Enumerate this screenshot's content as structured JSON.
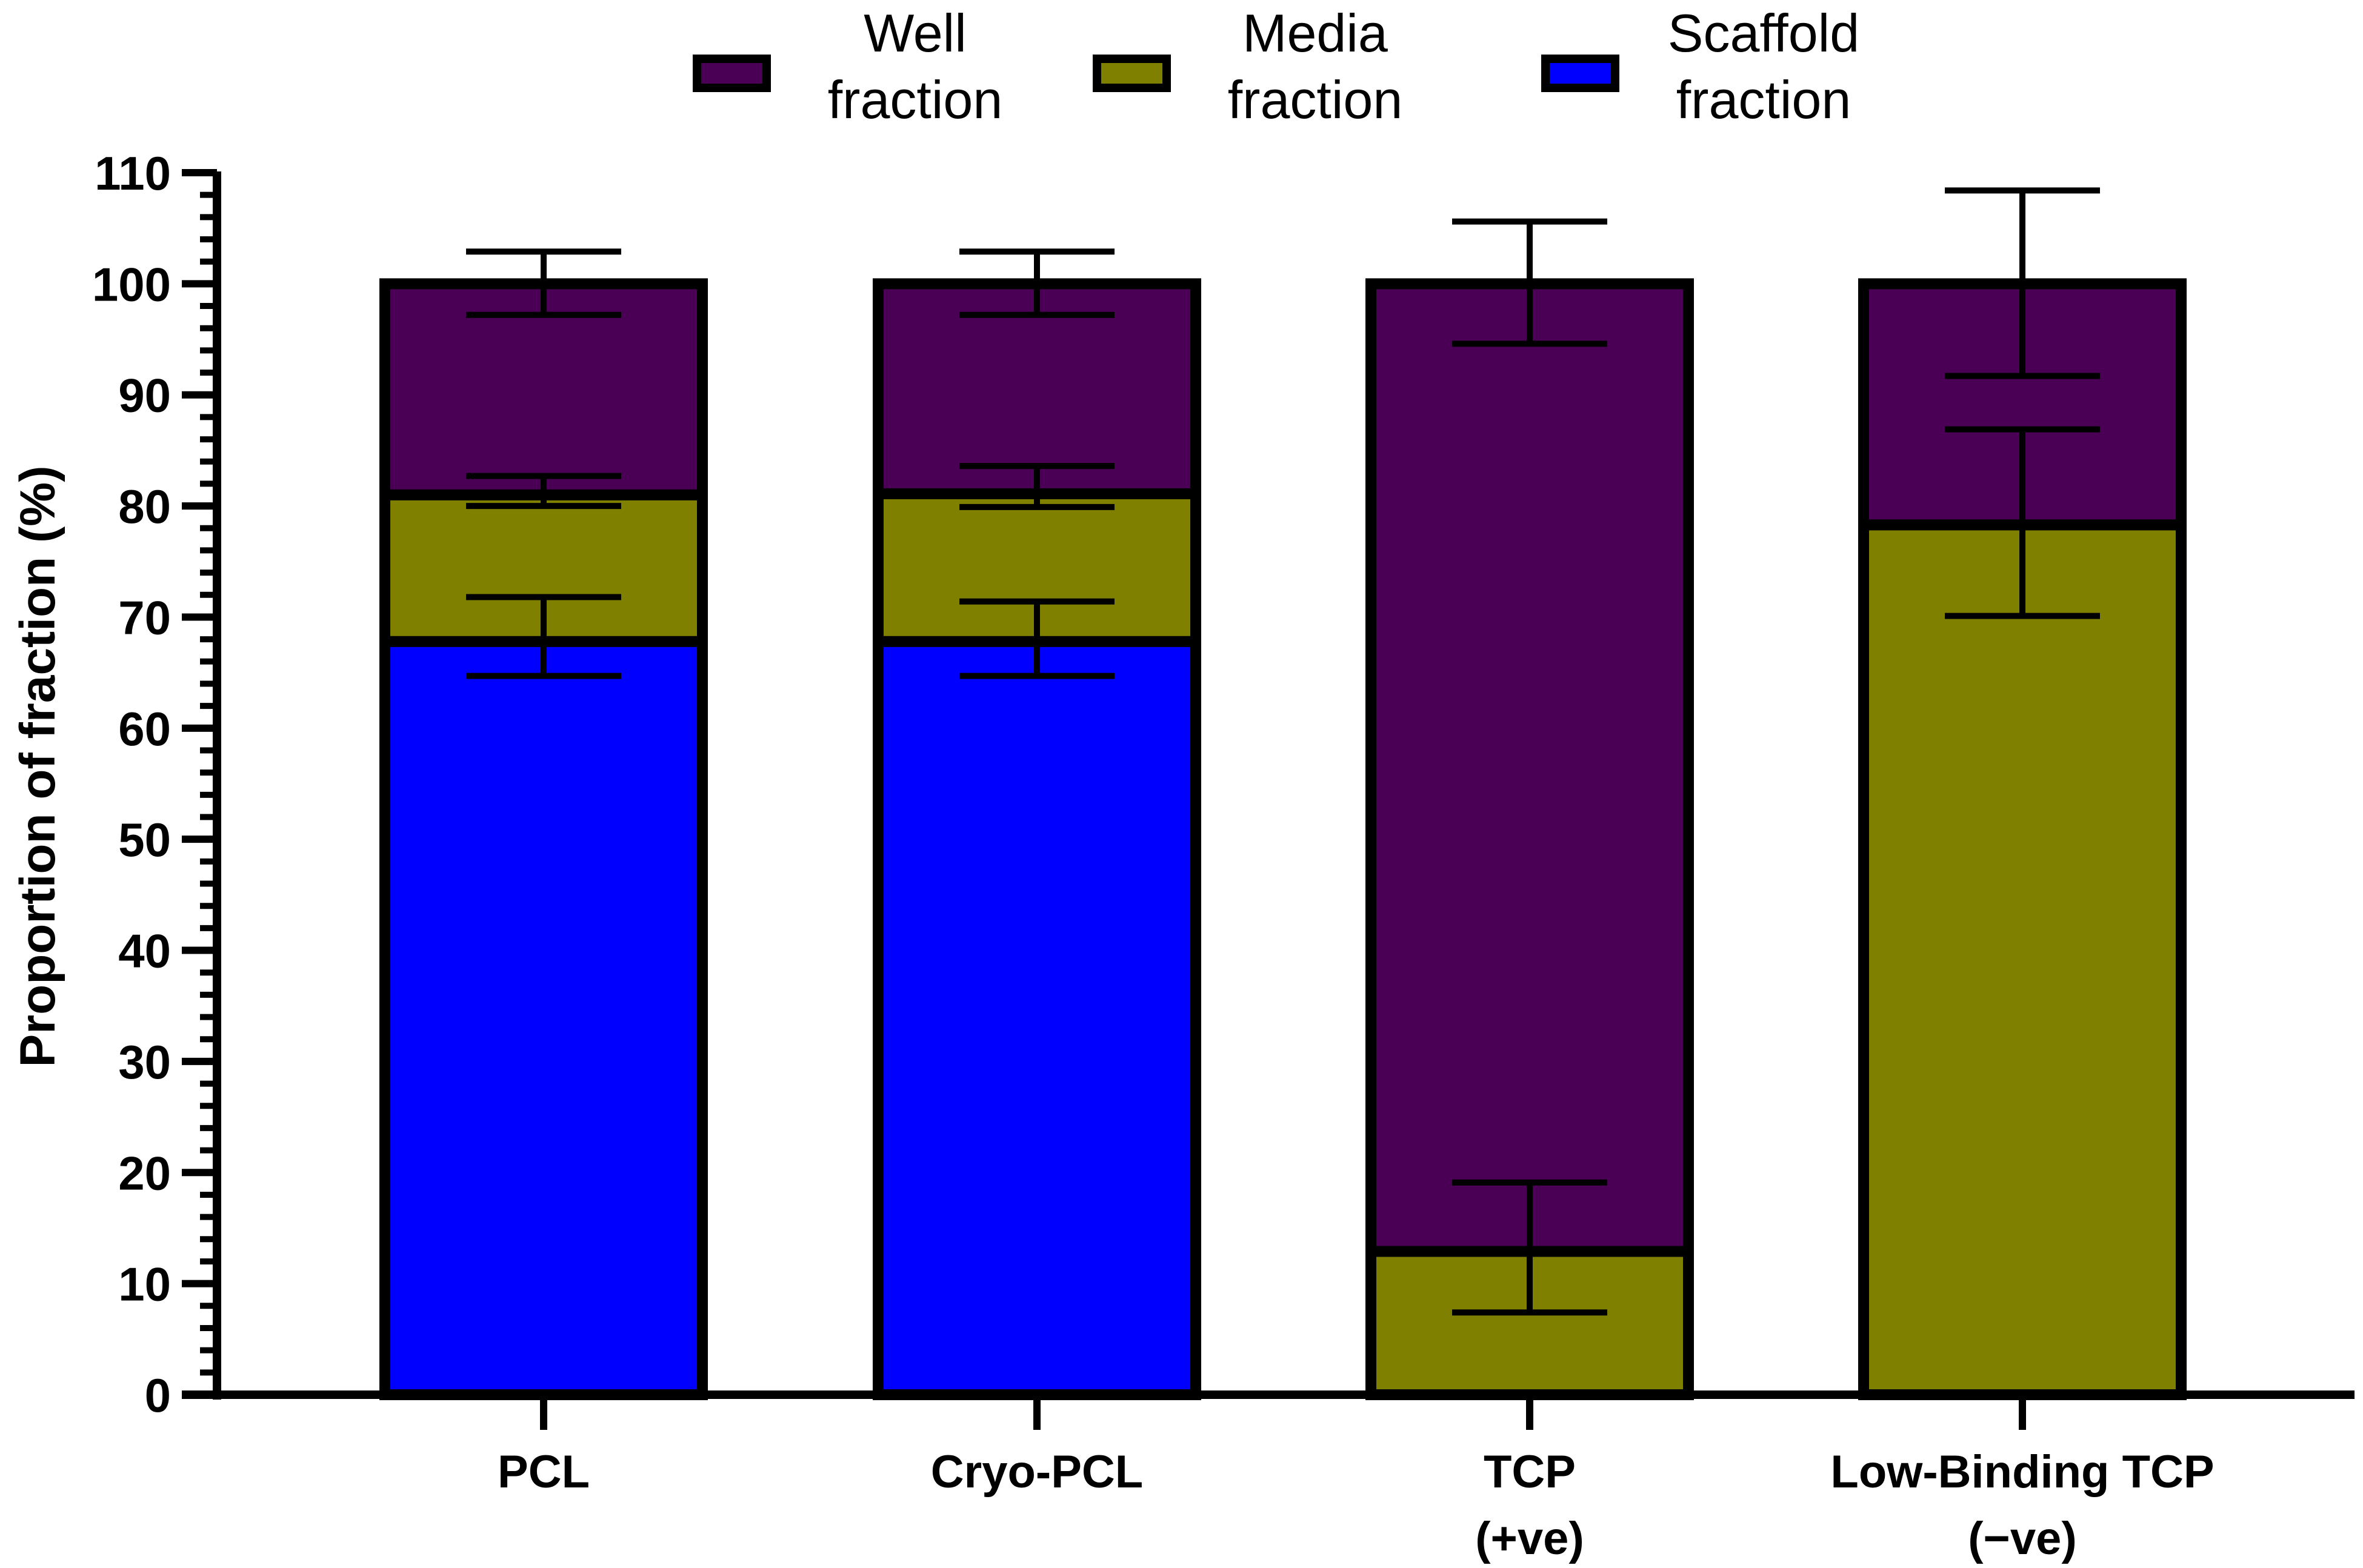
{
  "chart_data": {
    "type": "bar",
    "stacked": true,
    "ylabel": "Proportion of fraction (%)",
    "xlabel": "",
    "ylim": [
      0,
      110
    ],
    "yticks": [
      "0",
      "10",
      "20",
      "30",
      "40",
      "50",
      "60",
      "70",
      "80",
      "90",
      "100",
      "110"
    ],
    "minor_ticks_per_major": 5,
    "categories": [
      {
        "lines": [
          "PCL"
        ]
      },
      {
        "lines": [
          "Cryo-PCL"
        ]
      },
      {
        "lines": [
          "TCP",
          "(+ve)"
        ]
      },
      {
        "lines": [
          "Low-Binding TCP",
          "(−ve)"
        ]
      }
    ],
    "series": [
      {
        "name": "Scaffold fraction",
        "legend_lines": [
          "Scaffold",
          "fraction"
        ],
        "color": "#0000FF",
        "values": [
          67.8,
          67.8,
          0,
          0
        ],
        "errors": [
          [
            64.7,
            71.8
          ],
          [
            64.7,
            71.4
          ],
          null,
          null
        ]
      },
      {
        "name": "Media fraction",
        "legend_lines": [
          "Media",
          "fraction"
        ],
        "color": "#808000",
        "values": [
          13.2,
          13.3,
          12.9,
          78.3
        ],
        "errors": [
          [
            80.0,
            82.7
          ],
          [
            79.9,
            83.6
          ],
          [
            7.4,
            19.1
          ],
          [
            70.1,
            86.9
          ]
        ]
      },
      {
        "name": "Well fraction",
        "legend_lines": [
          "Well",
          "fraction"
        ],
        "color": "#4A0055",
        "values": [
          19.0,
          18.9,
          87.1,
          21.7
        ],
        "errors": [
          [
            97.2,
            102.9
          ],
          [
            97.2,
            102.9
          ],
          [
            94.6,
            105.6
          ],
          [
            91.7,
            108.4
          ]
        ]
      }
    ],
    "legend_order": [
      "Well fraction",
      "Media fraction",
      "Scaffold fraction"
    ],
    "legend_position": "top-center"
  }
}
